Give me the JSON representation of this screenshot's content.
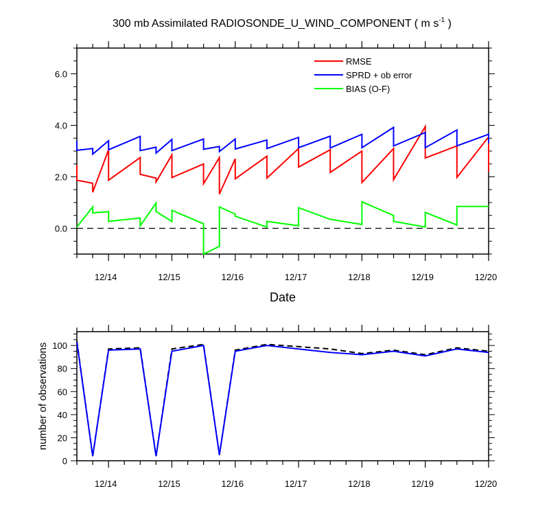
{
  "chart_data": [
    {
      "type": "line",
      "title": "300 mb Assimilated RADIOSONDE_U_WIND_COMPONENT ( m s",
      "title_sup": "-1",
      "title_end": " )",
      "xlabel": "Date",
      "ylabel": "",
      "xlim": [
        13.5,
        20.0
      ],
      "ylim": [
        -1.0,
        7.0
      ],
      "yticks": [
        0.0,
        2.0,
        4.0,
        6.0
      ],
      "ytick_labels": [
        "0.0",
        "2.0",
        "4.0",
        "6.0"
      ],
      "xticks": [
        14,
        15,
        16,
        17,
        18,
        19,
        20
      ],
      "xtick_labels": [
        "12/14",
        "12/15",
        "12/16",
        "12/17",
        "12/18",
        "12/19",
        "12/20"
      ],
      "zero_line": true,
      "legend_position": "top-right",
      "series": [
        {
          "name": "RMSE",
          "color": "#ff0000",
          "x": [
            13.5,
            13.5,
            13.75,
            13.75,
            14.0,
            14.0,
            14.5,
            14.5,
            14.75,
            14.75,
            15.0,
            15.0,
            15.5,
            15.5,
            15.75,
            15.75,
            16.0,
            16.0,
            16.5,
            16.5,
            17.0,
            17.0,
            17.5,
            17.5,
            18.0,
            18.0,
            18.5,
            18.5,
            19.0,
            19.0,
            19.5,
            19.5,
            20.0,
            20.0
          ],
          "y": [
            2.45,
            1.87,
            1.75,
            1.4,
            3.05,
            1.87,
            2.75,
            2.1,
            1.95,
            1.8,
            2.85,
            1.97,
            2.5,
            1.73,
            2.75,
            1.33,
            2.7,
            1.92,
            2.8,
            1.95,
            3.1,
            2.38,
            3.05,
            2.17,
            3.0,
            1.78,
            3.1,
            1.89,
            3.95,
            2.73,
            3.2,
            1.98,
            3.55,
            2.2
          ]
        },
        {
          "name": "SPRD + ob error",
          "color": "#0000ff",
          "x": [
            13.5,
            13.5,
            13.75,
            13.75,
            14.0,
            14.0,
            14.5,
            14.5,
            14.75,
            14.75,
            15.0,
            15.0,
            15.5,
            15.5,
            15.75,
            15.75,
            16.0,
            16.0,
            16.5,
            16.5,
            17.0,
            17.0,
            17.5,
            17.5,
            18.0,
            18.0,
            18.5,
            18.5,
            19.0,
            19.0,
            19.5,
            19.5,
            20.0,
            20.0
          ],
          "y": [
            3.4,
            3.03,
            3.1,
            2.88,
            3.4,
            3.05,
            3.57,
            3.02,
            3.15,
            2.92,
            3.45,
            3.02,
            3.47,
            3.07,
            3.18,
            2.98,
            3.47,
            3.08,
            3.43,
            3.1,
            3.53,
            3.13,
            3.58,
            3.12,
            3.65,
            3.13,
            3.92,
            3.2,
            3.72,
            3.13,
            3.82,
            3.2,
            3.65,
            3.3
          ]
        },
        {
          "name": "BIAS (O-F)",
          "color": "#00ff00",
          "x": [
            13.5,
            13.75,
            13.75,
            14.0,
            14.0,
            14.5,
            14.5,
            14.75,
            14.75,
            15.0,
            15.0,
            15.5,
            15.5,
            15.75,
            15.75,
            16.0,
            16.0,
            16.5,
            16.5,
            17.0,
            17.0,
            17.5,
            17.5,
            18.0,
            18.0,
            18.5,
            18.5,
            19.0,
            19.0,
            19.5,
            19.5,
            20.0
          ],
          "y": [
            0.05,
            0.83,
            0.6,
            0.65,
            0.27,
            0.4,
            0.1,
            0.98,
            0.65,
            0.27,
            0.7,
            0.18,
            -1.0,
            -0.7,
            0.83,
            0.55,
            0.47,
            0.05,
            0.27,
            0.1,
            0.8,
            0.35,
            0.35,
            0.15,
            1.03,
            0.5,
            0.27,
            0.05,
            0.62,
            0.13,
            0.85,
            0.85
          ]
        }
      ]
    },
    {
      "type": "line",
      "title": "",
      "xlabel": "",
      "ylabel": "number of observations",
      "xlim": [
        13.5,
        20.0
      ],
      "ylim": [
        0,
        112
      ],
      "yticks": [
        0,
        20,
        40,
        60,
        80,
        100
      ],
      "ytick_labels": [
        "0",
        "20",
        "40",
        "60",
        "80",
        "100"
      ],
      "xticks": [
        14,
        15,
        16,
        17,
        18,
        19,
        20
      ],
      "xtick_labels": [
        "12/14",
        "12/15",
        "12/16",
        "12/17",
        "12/18",
        "12/19",
        "12/20"
      ],
      "series": [
        {
          "color": "#000000",
          "dash": true,
          "x": [
            13.5,
            13.75,
            14.0,
            14.5,
            14.75,
            15.0,
            15.5,
            15.75,
            16.0,
            16.5,
            17.0,
            17.5,
            18.0,
            18.5,
            19.0,
            19.5,
            20.0
          ],
          "y": [
            104,
            4,
            97,
            98,
            4,
            97,
            101,
            5,
            96,
            101,
            99,
            97,
            93,
            96,
            92,
            98,
            95
          ]
        },
        {
          "color": "#0000ff",
          "dash": false,
          "x": [
            13.5,
            13.75,
            14.0,
            14.5,
            14.75,
            15.0,
            15.5,
            15.75,
            16.0,
            16.5,
            17.0,
            17.5,
            18.0,
            18.5,
            19.0,
            19.5,
            20.0
          ],
          "y": [
            103,
            4,
            96,
            97,
            4,
            95,
            100,
            5,
            95,
            100,
            97,
            94,
            92,
            95,
            91,
            97,
            94
          ]
        }
      ]
    }
  ]
}
